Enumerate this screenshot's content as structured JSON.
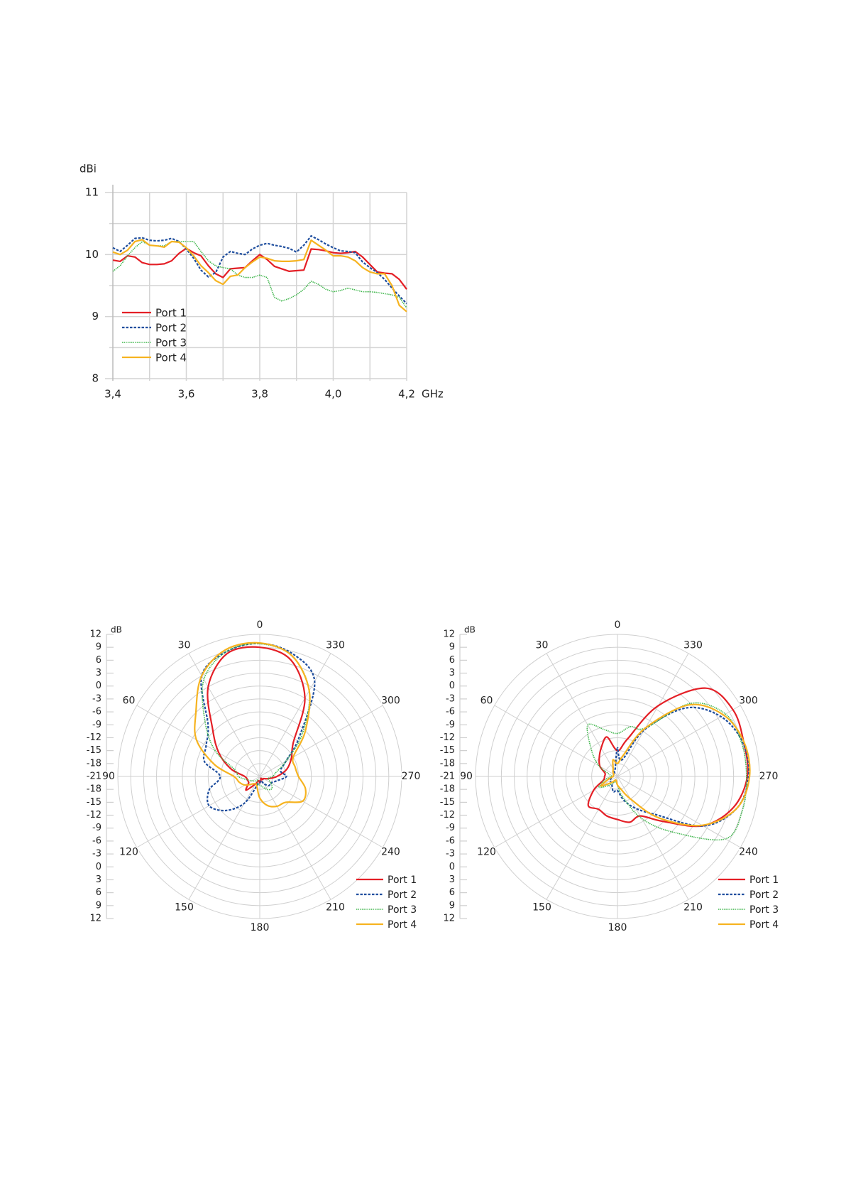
{
  "chart_data": [
    {
      "type": "line",
      "title": "",
      "ylabel": "dBi",
      "xlabel": "GHz",
      "xlim": [
        3.4,
        4.2
      ],
      "ylim": [
        8,
        11
      ],
      "x_ticks": [
        {
          "value": 3.4,
          "label": "3,4"
        },
        {
          "value": 3.6,
          "label": "3,6"
        },
        {
          "value": 3.8,
          "label": "3,8"
        },
        {
          "value": 4.0,
          "label": "4,0"
        },
        {
          "value": 4.2,
          "label": "4,2"
        }
      ],
      "y_ticks": [
        {
          "value": 8,
          "label": "8"
        },
        {
          "value": 9,
          "label": "9"
        },
        {
          "value": 10,
          "label": "10"
        },
        {
          "value": 11,
          "label": "11"
        }
      ],
      "grid": true,
      "legend": "bottom-left",
      "x": [
        3.4,
        3.42,
        3.44,
        3.46,
        3.48,
        3.5,
        3.52,
        3.54,
        3.56,
        3.58,
        3.6,
        3.62,
        3.64,
        3.66,
        3.68,
        3.7,
        3.72,
        3.74,
        3.76,
        3.78,
        3.8,
        3.82,
        3.84,
        3.86,
        3.88,
        3.9,
        3.92,
        3.94,
        3.96,
        3.98,
        4.0,
        4.02,
        4.04,
        4.06,
        4.08,
        4.1,
        4.12,
        4.14,
        4.16,
        4.18,
        4.2
      ],
      "series": [
        {
          "name": "Port 1",
          "color": "#e41f26",
          "style": "solid",
          "values": [
            9.91,
            9.89,
            9.98,
            9.96,
            9.87,
            9.84,
            9.84,
            9.85,
            9.9,
            10.02,
            10.1,
            10.03,
            9.98,
            9.82,
            9.69,
            9.63,
            9.77,
            9.78,
            9.79,
            9.9,
            10.0,
            9.92,
            9.81,
            9.77,
            9.73,
            9.74,
            9.75,
            10.09,
            10.08,
            10.06,
            10.03,
            10.02,
            10.03,
            10.05,
            9.96,
            9.84,
            9.72,
            9.7,
            9.69,
            9.6,
            9.44
          ]
        },
        {
          "name": "Port 2",
          "color": "#1f4e9e",
          "style": "dashed",
          "values": [
            10.11,
            10.05,
            10.15,
            10.26,
            10.27,
            10.23,
            10.22,
            10.23,
            10.26,
            10.21,
            10.09,
            9.94,
            9.75,
            9.64,
            9.71,
            9.96,
            10.05,
            10.02,
            10.0,
            10.09,
            10.15,
            10.18,
            10.15,
            10.13,
            10.1,
            10.04,
            10.15,
            10.3,
            10.24,
            10.17,
            10.11,
            10.06,
            10.05,
            10.03,
            9.88,
            9.79,
            9.71,
            9.6,
            9.46,
            9.33,
            9.21
          ]
        },
        {
          "name": "Port 3",
          "color": "#3db54a",
          "style": "dotted",
          "values": [
            9.73,
            9.82,
            9.98,
            10.11,
            10.21,
            10.15,
            10.14,
            10.14,
            10.21,
            10.21,
            10.21,
            10.21,
            10.05,
            9.9,
            9.82,
            9.79,
            9.77,
            9.67,
            9.63,
            9.63,
            9.67,
            9.63,
            9.31,
            9.25,
            9.29,
            9.35,
            9.44,
            9.57,
            9.52,
            9.44,
            9.4,
            9.42,
            9.46,
            9.43,
            9.4,
            9.4,
            9.39,
            9.37,
            9.35,
            9.31,
            9.14
          ]
        },
        {
          "name": "Port 4",
          "color": "#f6b320",
          "style": "solid",
          "values": [
            10.04,
            10.0,
            10.07,
            10.21,
            10.24,
            10.15,
            10.14,
            10.12,
            10.21,
            10.2,
            10.11,
            9.98,
            9.82,
            9.71,
            9.58,
            9.52,
            9.65,
            9.67,
            9.79,
            9.88,
            9.96,
            9.94,
            9.9,
            9.89,
            9.89,
            9.9,
            9.92,
            10.23,
            10.15,
            10.07,
            9.98,
            9.98,
            9.96,
            9.9,
            9.79,
            9.72,
            9.69,
            9.69,
            9.5,
            9.18,
            9.08
          ]
        }
      ]
    },
    {
      "type": "polar",
      "title": "",
      "radial_label": "dB",
      "rlim": [
        -21,
        12
      ],
      "radial_ticks": [
        "12",
        "9",
        "6",
        "3",
        "0",
        "-3",
        "-6",
        "-9",
        "-12",
        "-15",
        "-18",
        "-21",
        "-18",
        "-15",
        "-12",
        "-9",
        "-6",
        "-3",
        "0",
        "3",
        "6",
        "9",
        "12"
      ],
      "angle_ticks": [
        "0",
        "30",
        "60",
        "90",
        "120",
        "150",
        "180",
        "210",
        "240",
        "270",
        "300",
        "330"
      ],
      "legend": "bottom-right",
      "angles": [
        0,
        15,
        30,
        45,
        60,
        75,
        90,
        105,
        120,
        135,
        150,
        165,
        180,
        195,
        210,
        225,
        240,
        255,
        270,
        285,
        300,
        315,
        330,
        345
      ],
      "series": [
        {
          "name": "Port 1",
          "color": "#e41f26",
          "style": "solid",
          "values": [
            9,
            8.5,
            3,
            -5.5,
            -10,
            -14,
            -17.5,
            -18,
            -18,
            -16.5,
            -19,
            -20,
            -19.5,
            -20,
            -20.5,
            -20,
            -20,
            -19,
            -17,
            -14.5,
            -12.5,
            -10,
            0,
            7
          ]
        },
        {
          "name": "Port 2",
          "color": "#1f4e9e",
          "style": "dashed",
          "values": [
            9.9,
            9,
            6,
            -4,
            -6.6,
            -7.7,
            -11.8,
            -8.8,
            -7.4,
            -9.8,
            -13.8,
            -19,
            -19.5,
            -20,
            -19,
            -18,
            -18,
            -17,
            -14.8,
            -16,
            -14,
            -8,
            4.5,
            8.5
          ]
        },
        {
          "name": "Port 3",
          "color": "#3db54a",
          "style": "dotted",
          "values": [
            9.8,
            9,
            5,
            -3,
            -9,
            -15,
            -16,
            -18,
            -19,
            -19.5,
            -20,
            -19,
            -19,
            -18.5,
            -17.5,
            -17,
            -18,
            -19,
            -18,
            -17,
            -14,
            -7,
            2,
            8
          ]
        },
        {
          "name": "Port 4",
          "color": "#f6b320",
          "style": "solid",
          "values": [
            10,
            9.5,
            6,
            0,
            -4,
            -10,
            -15,
            -16,
            -17,
            -18.5,
            -19,
            -18.5,
            -16,
            -14,
            -13,
            -12.5,
            -9.5,
            -10,
            -12,
            -12.5,
            -12,
            -6,
            2,
            8
          ]
        }
      ]
    },
    {
      "type": "polar",
      "title": "",
      "radial_label": "dB",
      "rlim": [
        -21,
        12
      ],
      "radial_ticks": [
        "12",
        "9",
        "6",
        "3",
        "0",
        "-3",
        "-6",
        "-9",
        "-12",
        "-15",
        "-18",
        "-21",
        "-18",
        "-15",
        "-12",
        "-9",
        "-6",
        "-3",
        "0",
        "3",
        "6",
        "9",
        "12"
      ],
      "angle_ticks": [
        "0",
        "30",
        "60",
        "90",
        "120",
        "150",
        "180",
        "210",
        "240",
        "270",
        "300",
        "330"
      ],
      "legend": "bottom-right",
      "angles": [
        0,
        15,
        30,
        45,
        60,
        75,
        90,
        105,
        120,
        135,
        150,
        165,
        180,
        195,
        210,
        225,
        240,
        255,
        270,
        285,
        300,
        315,
        330,
        345
      ],
      "series": [
        {
          "name": "Port 1",
          "color": "#e41f26",
          "style": "solid",
          "values": [
            -15,
            -11.5,
            -13.4,
            -15,
            -16.3,
            -18,
            -18,
            -17.6,
            -14.6,
            -11.4,
            -12.2,
            -11.5,
            -11,
            -10,
            -10.4,
            -6.3,
            1.9,
            6.9,
            9.2,
            9.4,
            10,
            8,
            -2,
            -12
          ]
        },
        {
          "name": "Port 2",
          "color": "#1f4e9e",
          "style": "dashed",
          "values": [
            -14.4,
            -19,
            -19.5,
            -20,
            -20,
            -20,
            -20,
            -19.5,
            -19,
            -19,
            -18.5,
            -17.3,
            -17.7,
            -15.3,
            -12.4,
            -8.5,
            2,
            7.7,
            9.5,
            9.2,
            6.8,
            1.5,
            -8.5,
            -17
          ]
        },
        {
          "name": "Port 3",
          "color": "#3db54a",
          "style": "dotted",
          "values": [
            -11,
            -9.8,
            -7.2,
            -12.5,
            -16,
            -19,
            -19.5,
            -18,
            -16,
            -18,
            -19.5,
            -19.5,
            -19,
            -16,
            -9.7,
            -2.7,
            8,
            9.1,
            9,
            8.9,
            8,
            3,
            -8,
            -9
          ]
        },
        {
          "name": "Port 4",
          "color": "#f6b320",
          "style": "solid",
          "values": [
            -18,
            -17,
            -19,
            -19.5,
            -20,
            -20,
            -20,
            -19,
            -16.5,
            -19,
            -20,
            -20,
            -19,
            -18,
            -15,
            -7.4,
            1.7,
            7.7,
            9.7,
            9.5,
            7.5,
            2.5,
            -8,
            -16
          ]
        }
      ]
    }
  ]
}
